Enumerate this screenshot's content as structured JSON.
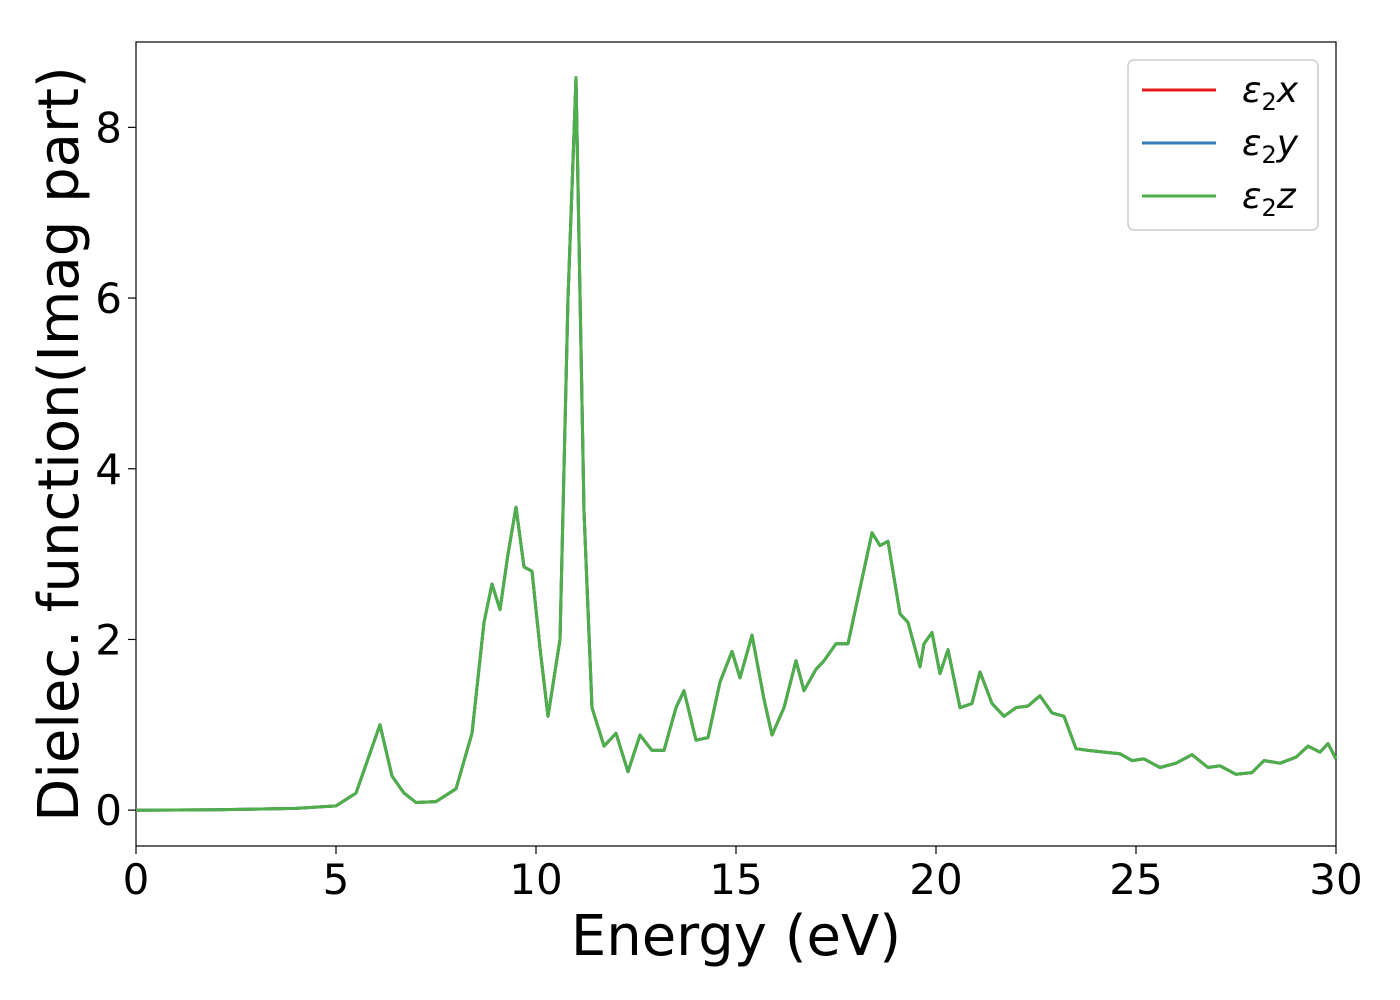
{
  "chart_data": {
    "type": "line",
    "title": "",
    "xlabel": "Energy (eV)",
    "ylabel": "Dielec. function(Imag part)",
    "xlim": [
      0,
      30
    ],
    "ylim": [
      -0.42,
      9.0
    ],
    "xticks": [
      0,
      5,
      10,
      15,
      20,
      25,
      30
    ],
    "yticks": [
      0,
      2,
      4,
      6,
      8
    ],
    "grid": false,
    "legend_position": "top-right",
    "series": [
      {
        "name": "x",
        "color": "#e41a1c"
      },
      {
        "name": "y",
        "color": "#377eb8"
      },
      {
        "name": "z",
        "color": "#4daf4a"
      }
    ],
    "legend_symbol": "ε",
    "legend_subscript": "2",
    "x": [
      0,
      2,
      4,
      5,
      5.5,
      5.8,
      6.1,
      6.4,
      6.7,
      7.0,
      7.5,
      8.0,
      8.4,
      8.7,
      8.9,
      9.1,
      9.3,
      9.5,
      9.7,
      9.9,
      10.1,
      10.3,
      10.6,
      10.8,
      11.0,
      11.2,
      11.4,
      11.7,
      12.0,
      12.3,
      12.6,
      12.9,
      13.2,
      13.5,
      13.7,
      14.0,
      14.3,
      14.6,
      14.9,
      15.1,
      15.4,
      15.7,
      15.9,
      16.2,
      16.5,
      16.7,
      17.0,
      17.2,
      17.5,
      17.8,
      18.1,
      18.4,
      18.6,
      18.8,
      19.1,
      19.3,
      19.6,
      19.7,
      19.9,
      20.1,
      20.3,
      20.6,
      20.9,
      21.1,
      21.4,
      21.7,
      22.0,
      22.3,
      22.6,
      22.9,
      23.2,
      23.5,
      23.8,
      24.2,
      24.6,
      24.9,
      25.2,
      25.6,
      26.0,
      26.4,
      26.8,
      27.1,
      27.5,
      27.9,
      28.2,
      28.6,
      29.0,
      29.3,
      29.6,
      29.8,
      30.0
    ],
    "y": [
      0.0,
      0.005,
      0.02,
      0.05,
      0.2,
      0.6,
      1.0,
      0.4,
      0.2,
      0.09,
      0.1,
      0.25,
      0.9,
      2.2,
      2.65,
      2.35,
      3.0,
      3.55,
      2.85,
      2.8,
      1.9,
      1.1,
      2.0,
      6.0,
      8.58,
      3.5,
      1.2,
      0.75,
      0.9,
      0.45,
      0.88,
      0.7,
      0.7,
      1.2,
      1.4,
      0.82,
      0.85,
      1.5,
      1.86,
      1.55,
      2.05,
      1.3,
      0.88,
      1.2,
      1.75,
      1.4,
      1.65,
      1.75,
      1.95,
      1.95,
      2.6,
      3.25,
      3.1,
      3.15,
      2.3,
      2.2,
      1.68,
      1.95,
      2.08,
      1.6,
      1.88,
      1.2,
      1.25,
      1.62,
      1.25,
      1.1,
      1.2,
      1.22,
      1.34,
      1.14,
      1.1,
      0.72,
      0.7,
      0.68,
      0.66,
      0.58,
      0.6,
      0.5,
      0.55,
      0.65,
      0.5,
      0.52,
      0.42,
      0.44,
      0.58,
      0.55,
      0.62,
      0.75,
      0.68,
      0.78,
      0.6
    ]
  }
}
